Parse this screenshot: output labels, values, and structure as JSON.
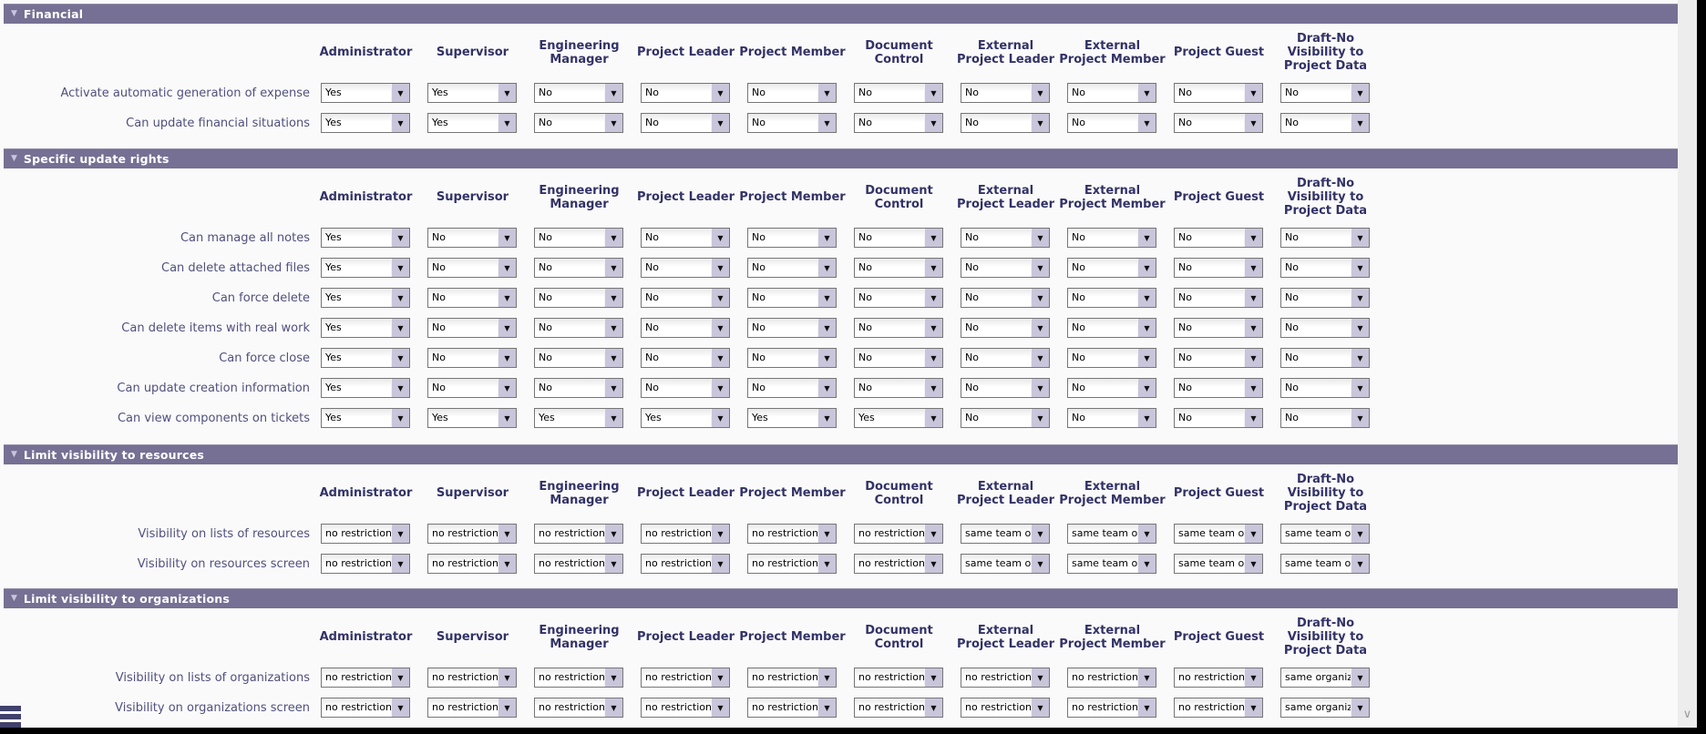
{
  "colors": {
    "section_bar_bg": "#767094",
    "section_bar_text": "#ffffff",
    "column_header_text": "#323267",
    "row_label_text": "#50507f",
    "dropdown_button_bg": "#c9c5da",
    "page_bg": "#fafafa"
  },
  "icons": {
    "collapse": "▼",
    "dropdown": "▼",
    "scroll_down": "∨"
  },
  "columns": [
    "Administrator",
    "Supervisor",
    "Engineering Manager",
    "Project Leader",
    "Project Member",
    "Document Control",
    "External Project Leader",
    "External Project Member",
    "Project Guest",
    "Draft-No Visibility to Project Data"
  ],
  "sections": [
    {
      "title": "Financial",
      "rows": [
        {
          "label": "Activate automatic generation of expense",
          "values": [
            "Yes",
            "Yes",
            "No",
            "No",
            "No",
            "No",
            "No",
            "No",
            "No",
            "No"
          ]
        },
        {
          "label": "Can update financial situations",
          "values": [
            "Yes",
            "Yes",
            "No",
            "No",
            "No",
            "No",
            "No",
            "No",
            "No",
            "No"
          ]
        }
      ]
    },
    {
      "title": "Specific update rights",
      "rows": [
        {
          "label": "Can manage all notes",
          "values": [
            "Yes",
            "No",
            "No",
            "No",
            "No",
            "No",
            "No",
            "No",
            "No",
            "No"
          ]
        },
        {
          "label": "Can delete attached files",
          "values": [
            "Yes",
            "No",
            "No",
            "No",
            "No",
            "No",
            "No",
            "No",
            "No",
            "No"
          ]
        },
        {
          "label": "Can force delete",
          "values": [
            "Yes",
            "No",
            "No",
            "No",
            "No",
            "No",
            "No",
            "No",
            "No",
            "No"
          ]
        },
        {
          "label": "Can delete items with real work",
          "values": [
            "Yes",
            "No",
            "No",
            "No",
            "No",
            "No",
            "No",
            "No",
            "No",
            "No"
          ]
        },
        {
          "label": "Can force close",
          "values": [
            "Yes",
            "No",
            "No",
            "No",
            "No",
            "No",
            "No",
            "No",
            "No",
            "No"
          ]
        },
        {
          "label": "Can update creation information",
          "values": [
            "Yes",
            "No",
            "No",
            "No",
            "No",
            "No",
            "No",
            "No",
            "No",
            "No"
          ]
        },
        {
          "label": "Can view components on tickets",
          "values": [
            "Yes",
            "Yes",
            "Yes",
            "Yes",
            "Yes",
            "Yes",
            "No",
            "No",
            "No",
            "No"
          ]
        }
      ]
    },
    {
      "title": "Limit visibility to resources",
      "rows": [
        {
          "label": "Visibility on lists of resources",
          "values": [
            "no restriction",
            "no restriction",
            "no restriction",
            "no restriction",
            "no restriction",
            "no restriction",
            "same team only",
            "same team only",
            "same team only",
            "same team only"
          ]
        },
        {
          "label": "Visibility on resources screen",
          "values": [
            "no restriction",
            "no restriction",
            "no restriction",
            "no restriction",
            "no restriction",
            "no restriction",
            "same team only",
            "same team only",
            "same team only",
            "same team only"
          ]
        }
      ]
    },
    {
      "title": "Limit visibility to organizations",
      "rows": [
        {
          "label": "Visibility on lists of organizations",
          "values": [
            "no restriction",
            "no restriction",
            "no restriction",
            "no restriction",
            "no restriction",
            "no restriction",
            "no restriction",
            "no restriction",
            "no restriction",
            "same organizat"
          ]
        },
        {
          "label": "Visibility on organizations screen",
          "values": [
            "no restriction",
            "no restriction",
            "no restriction",
            "no restriction",
            "no restriction",
            "no restriction",
            "no restriction",
            "no restriction",
            "no restriction",
            "same organizat"
          ]
        }
      ]
    }
  ]
}
